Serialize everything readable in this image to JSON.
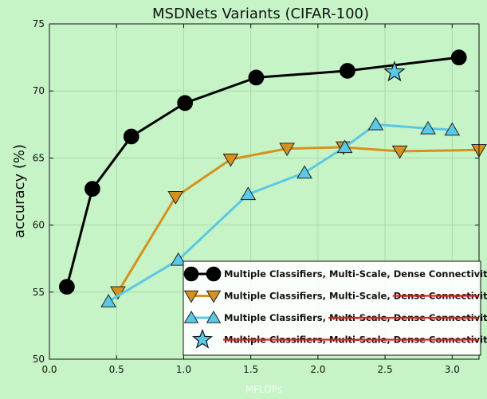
{
  "chart_data": {
    "type": "line",
    "title": "MSDNets Variants (CIFAR-100)",
    "xlabel": "MFLOPs",
    "ylabel": "accuracy (%)",
    "xlim": [
      0.0,
      3.2
    ],
    "ylim": [
      50,
      75
    ],
    "xticks": [
      0.0,
      0.5,
      1.0,
      1.5,
      2.0,
      2.5,
      3.0
    ],
    "yticks": [
      50,
      55,
      60,
      65,
      70,
      75
    ],
    "xtick_labels": [
      "0.0",
      "0.5",
      "1.0",
      "1.5",
      "2.0",
      "2.5",
      "3.0"
    ],
    "ytick_labels": [
      "50",
      "55",
      "60",
      "65",
      "70",
      "75"
    ],
    "grid": true,
    "legend_position": "lower-right",
    "series": [
      {
        "name": "Multiple Classifiers, Multi-Scale, Dense Connectivity",
        "legend_plain": "Multiple Classifiers, Multi-Scale, Dense Connectivity",
        "legend_struck": "",
        "color": "#000000",
        "marker": "circle",
        "x": [
          0.13,
          0.32,
          0.61,
          1.01,
          1.54,
          2.22,
          3.05
        ],
        "y": [
          55.4,
          62.7,
          66.6,
          69.1,
          71.0,
          71.5,
          72.5
        ]
      },
      {
        "name": "Multiple Classifiers, Multi-Scale, Dense Connectivity (no dense)",
        "legend_plain": "Multiple Classifiers, Multi-Scale, ",
        "legend_struck": "Dense Connectivity",
        "color": "#d4921f",
        "marker": "triangle-down",
        "x": [
          0.51,
          0.94,
          1.35,
          1.77,
          2.19,
          2.61,
          3.2
        ],
        "y": [
          55.0,
          62.1,
          64.9,
          65.7,
          65.8,
          65.5,
          65.6
        ]
      },
      {
        "name": "Multiple Classifiers, Multi-Scale, Dense Connectivity (no multi-scale, no dense)",
        "legend_plain": "Multiple Classifiers, ",
        "legend_struck": "Multi-Scale, Dense Connectivity",
        "color": "#5bc8e6",
        "marker": "triangle-up",
        "x": [
          0.44,
          0.96,
          1.48,
          1.9,
          2.2,
          2.43,
          2.82,
          3.0
        ],
        "y": [
          54.3,
          57.4,
          62.3,
          63.9,
          65.8,
          67.5,
          67.2,
          67.1
        ]
      },
      {
        "name": "Multiple Classifiers, Multi-Scale, Dense Connectivity (single classifier)",
        "legend_plain": "",
        "legend_struck": "Multiple Classifiers, Multi-Scale, Dense Connectivity",
        "color": "#5bc8e6",
        "marker": "star",
        "x": [
          2.57
        ],
        "y": [
          71.4
        ]
      }
    ]
  }
}
